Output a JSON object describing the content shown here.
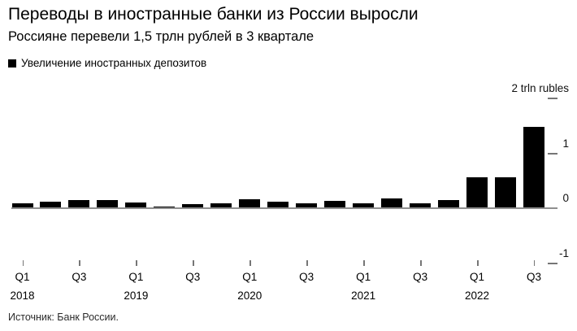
{
  "chart_data": {
    "type": "bar",
    "title": "Переводы в иностранные банки из России выросли",
    "subtitle": "Россияне перевели 1,5 трлн рублей в 3 квартале",
    "legend": [
      "Увеличение иностранных депозитов"
    ],
    "legend_position": "top-left",
    "source": "Источник: Банк России.",
    "unit": "trln rubles",
    "grid": false,
    "ylim": [
      -1,
      2
    ],
    "categories": [
      "Q1 2018",
      "Q2 2018",
      "Q3 2018",
      "Q4 2018",
      "Q1 2019",
      "Q2 2019",
      "Q3 2019",
      "Q4 2019",
      "Q1 2020",
      "Q2 2020",
      "Q3 2020",
      "Q4 2020",
      "Q1 2021",
      "Q2 2021",
      "Q3 2021",
      "Q4 2021",
      "Q1 2022",
      "Q2 2022",
      "Q3 2022"
    ],
    "values": [
      0.07,
      0.1,
      0.13,
      0.13,
      0.09,
      0.02,
      0.06,
      0.07,
      0.15,
      0.11,
      0.07,
      0.12,
      0.08,
      0.16,
      0.07,
      0.13,
      0.55,
      0.55,
      1.47
    ],
    "y_axis": {
      "ticks": [
        {
          "value": 2,
          "label": "2 trln rubles",
          "dash": true
        },
        {
          "value": 1,
          "label": "1",
          "dash": true
        },
        {
          "value": 0,
          "label": "0",
          "dash": false
        },
        {
          "value": -1,
          "label": "-1",
          "dash": true
        }
      ]
    },
    "x_axis": {
      "ticks": [
        {
          "bar_index": 0,
          "label": "Q1",
          "year": "2018"
        },
        {
          "bar_index": 2,
          "label": "Q3"
        },
        {
          "bar_index": 4,
          "label": "Q1",
          "year": "2019"
        },
        {
          "bar_index": 6,
          "label": "Q3"
        },
        {
          "bar_index": 8,
          "label": "Q1",
          "year": "2020"
        },
        {
          "bar_index": 10,
          "label": "Q3"
        },
        {
          "bar_index": 12,
          "label": "Q1",
          "year": "2021"
        },
        {
          "bar_index": 14,
          "label": "Q3"
        },
        {
          "bar_index": 16,
          "label": "Q1",
          "year": "2022"
        },
        {
          "bar_index": 18,
          "label": "Q3"
        }
      ]
    }
  },
  "colors": {
    "bar": "#000000",
    "baseline": "#8f8f8f",
    "tick": "#767676",
    "text": "#000000"
  }
}
